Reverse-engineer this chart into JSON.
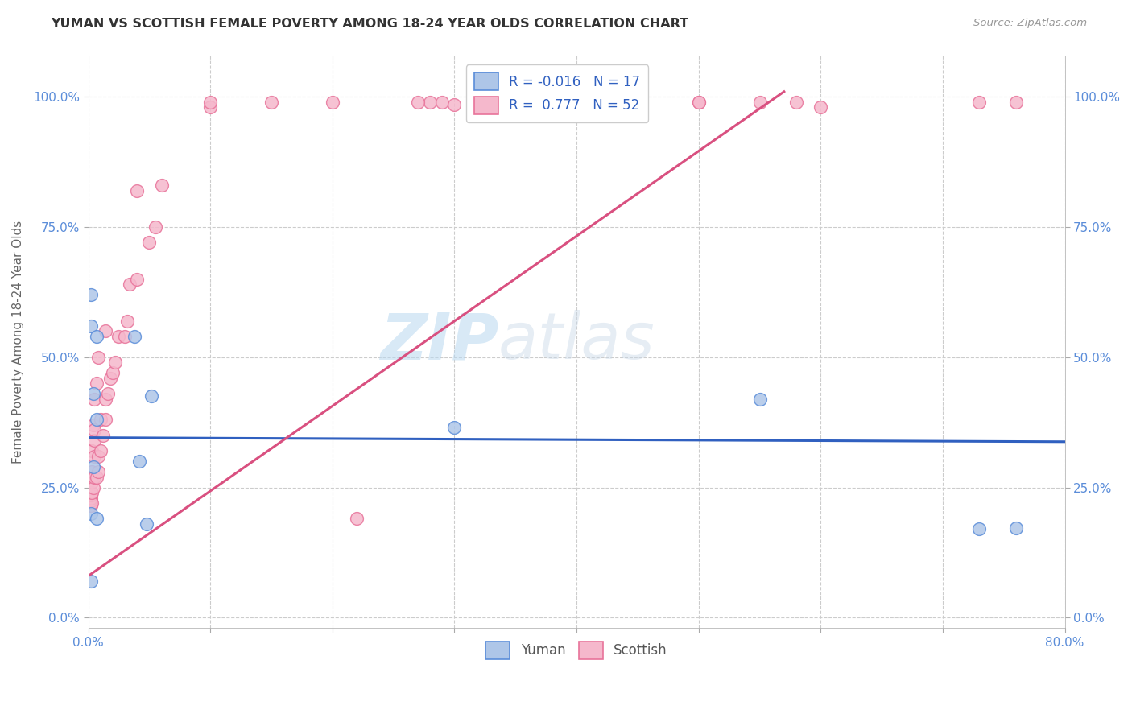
{
  "title": "YUMAN VS SCOTTISH FEMALE POVERTY AMONG 18-24 YEAR OLDS CORRELATION CHART",
  "source": "Source: ZipAtlas.com",
  "xlabel": "",
  "ylabel": "Female Poverty Among 18-24 Year Olds",
  "xlim": [
    0.0,
    0.8
  ],
  "ylim": [
    -0.02,
    1.08
  ],
  "ytick_vals": [
    0.0,
    0.25,
    0.5,
    0.75,
    1.0
  ],
  "ytick_labels": [
    "0.0%",
    "25.0%",
    "50.0%",
    "75.0%",
    "100.0%"
  ],
  "xtick_vals": [
    0.0,
    0.1,
    0.2,
    0.3,
    0.4,
    0.5,
    0.6,
    0.7,
    0.8
  ],
  "xtick_labels": [
    "0.0%",
    "",
    "",
    "",
    "",
    "",
    "",
    "",
    "80.0%"
  ],
  "watermark_zip": "ZIP",
  "watermark_atlas": "atlas",
  "legend_r_yuman": "-0.016",
  "legend_n_yuman": "17",
  "legend_r_scottish": "0.777",
  "legend_n_scottish": "52",
  "yuman_color": "#aec6e8",
  "scottish_color": "#f5b8cc",
  "yuman_edge_color": "#5b8dd9",
  "scottish_edge_color": "#e8739a",
  "yuman_line_color": "#3060c0",
  "scottish_line_color": "#d95080",
  "yuman_x": [
    0.002,
    0.002,
    0.002,
    0.002,
    0.004,
    0.004,
    0.007,
    0.007,
    0.007,
    0.038,
    0.042,
    0.048,
    0.052,
    0.3,
    0.55,
    0.73,
    0.76
  ],
  "yuman_y": [
    0.62,
    0.56,
    0.2,
    0.07,
    0.43,
    0.29,
    0.54,
    0.19,
    0.38,
    0.54,
    0.3,
    0.18,
    0.425,
    0.365,
    0.42,
    0.17,
    0.172
  ],
  "scottish_x": [
    0.002,
    0.002,
    0.002,
    0.002,
    0.002,
    0.002,
    0.003,
    0.003,
    0.003,
    0.003,
    0.003,
    0.004,
    0.004,
    0.005,
    0.005,
    0.005,
    0.005,
    0.005,
    0.007,
    0.007,
    0.008,
    0.008,
    0.008,
    0.01,
    0.01,
    0.012,
    0.014,
    0.014,
    0.014,
    0.016,
    0.018,
    0.02,
    0.022,
    0.025,
    0.03,
    0.032,
    0.034,
    0.04,
    0.04,
    0.05,
    0.055,
    0.06,
    0.1,
    0.1,
    0.15,
    0.2,
    0.22,
    0.28,
    0.32,
    0.5,
    0.55,
    0.6
  ],
  "scottish_y": [
    0.215,
    0.22,
    0.225,
    0.23,
    0.235,
    0.24,
    0.22,
    0.24,
    0.26,
    0.28,
    0.32,
    0.25,
    0.37,
    0.27,
    0.31,
    0.34,
    0.36,
    0.42,
    0.27,
    0.45,
    0.28,
    0.31,
    0.5,
    0.32,
    0.38,
    0.35,
    0.38,
    0.42,
    0.55,
    0.43,
    0.46,
    0.47,
    0.49,
    0.54,
    0.54,
    0.57,
    0.64,
    0.65,
    0.82,
    0.72,
    0.75,
    0.83,
    0.98,
    0.99,
    0.99,
    0.99,
    0.19,
    0.99,
    0.98,
    0.99,
    0.99,
    0.98
  ],
  "scottish_top_x": [
    0.27,
    0.29,
    0.3,
    0.32,
    0.33,
    0.34,
    0.36,
    0.5,
    0.58,
    0.73,
    0.76
  ],
  "scottish_top_y": [
    0.99,
    0.99,
    0.985,
    0.99,
    0.99,
    0.99,
    0.99,
    0.99,
    0.99,
    0.99,
    0.99
  ],
  "background_color": "#ffffff",
  "grid_color": "#cccccc"
}
